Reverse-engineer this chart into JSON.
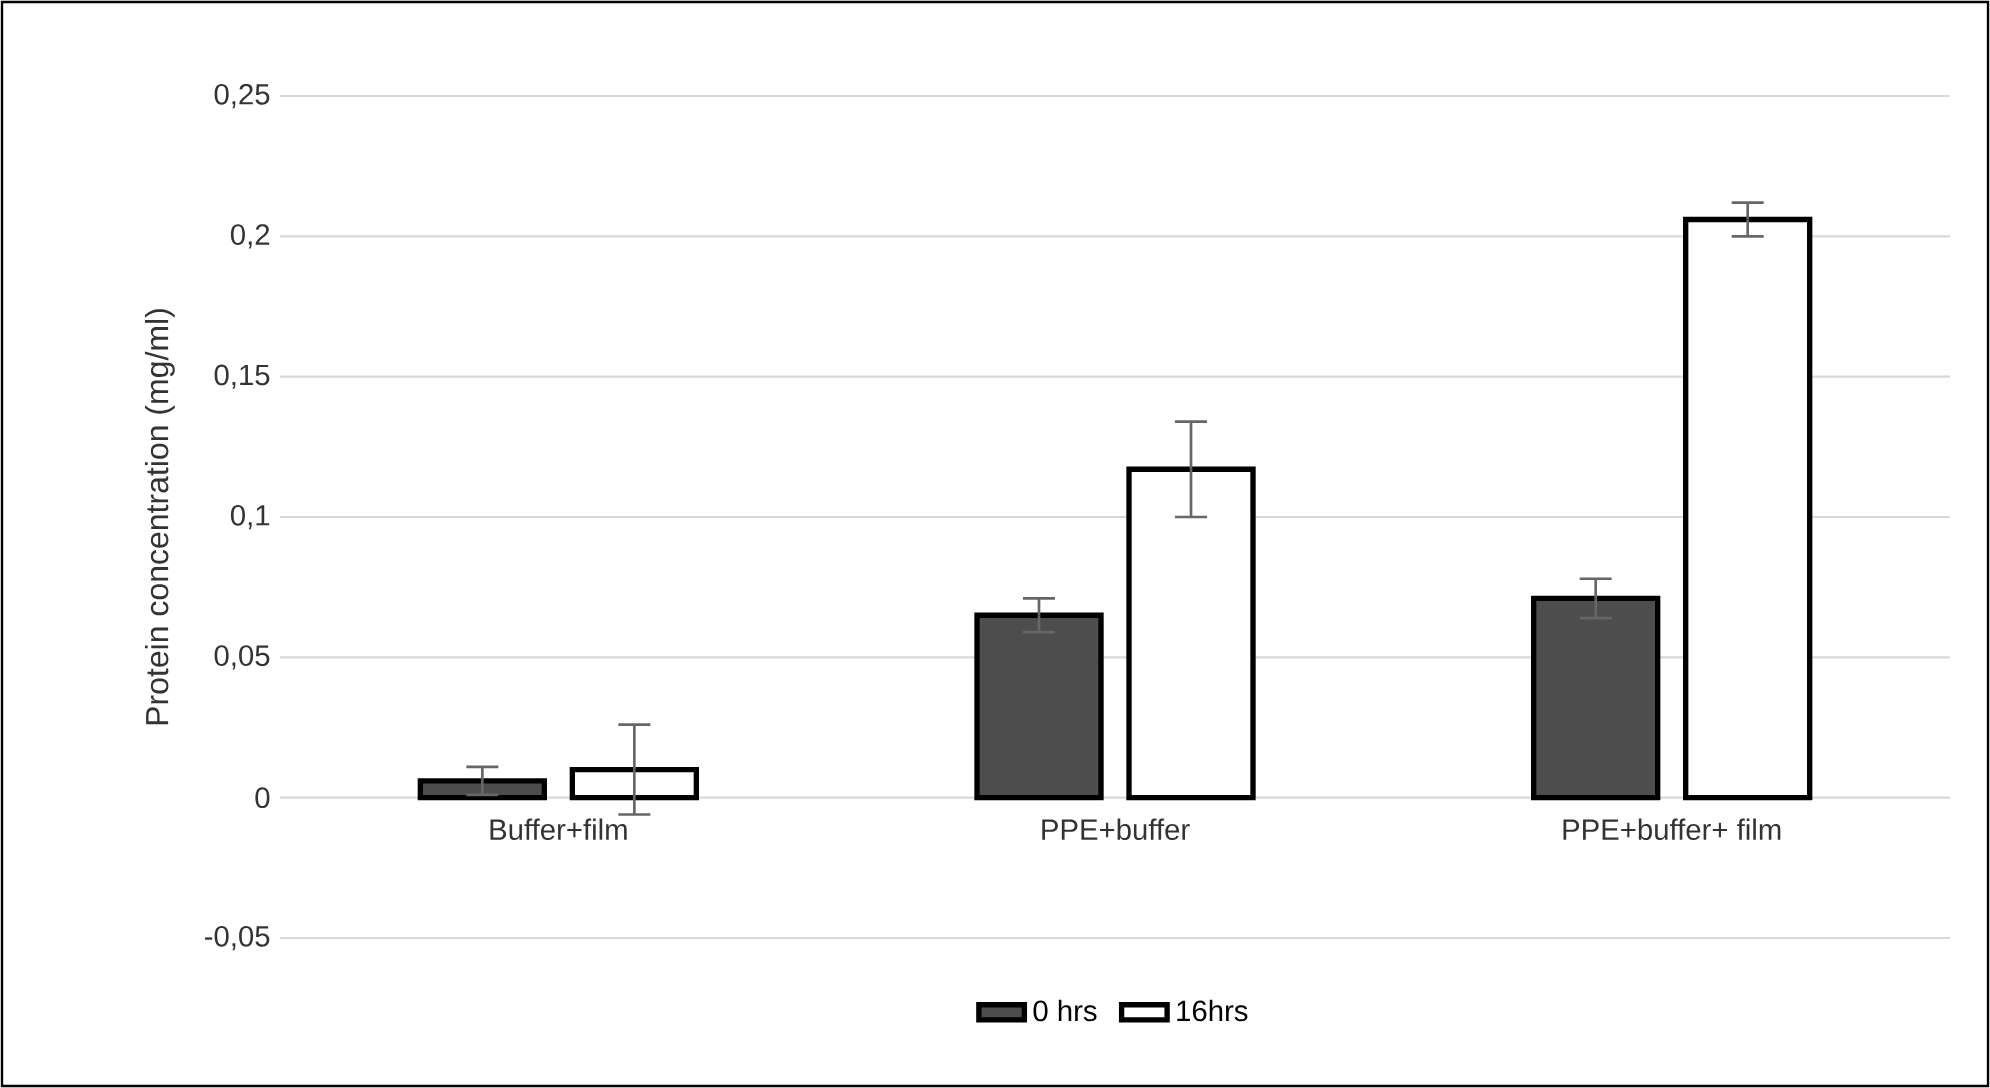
{
  "chart_data": {
    "type": "bar",
    "ylabel": "Protein concentration (mg/ml)",
    "categories": [
      "Buffer+film",
      "PPE+buffer",
      "PPE+buffer+ film"
    ],
    "series": [
      {
        "name": "0 hrs",
        "color": "#4d4d4d",
        "values": [
          0.006,
          0.065,
          0.071
        ],
        "errors": [
          0.005,
          0.006,
          0.007
        ]
      },
      {
        "name": "16hrs",
        "color": "#ffffff",
        "values": [
          0.01,
          0.117,
          0.206
        ],
        "errors": [
          0.016,
          0.017,
          0.006
        ]
      }
    ],
    "ylim": [
      -0.05,
      0.25
    ],
    "yticks": [
      {
        "value": -0.05,
        "label": "-0,05"
      },
      0,
      {
        "value": 0.05,
        "label": "0,05"
      },
      {
        "value": 0.1,
        "label": "0,1"
      },
      {
        "value": 0.15,
        "label": "0,15"
      },
      {
        "value": 0.2,
        "label": "0,2"
      },
      {
        "value": 0.25,
        "label": "0,25"
      }
    ],
    "grid": "y",
    "legend": "bottom"
  }
}
